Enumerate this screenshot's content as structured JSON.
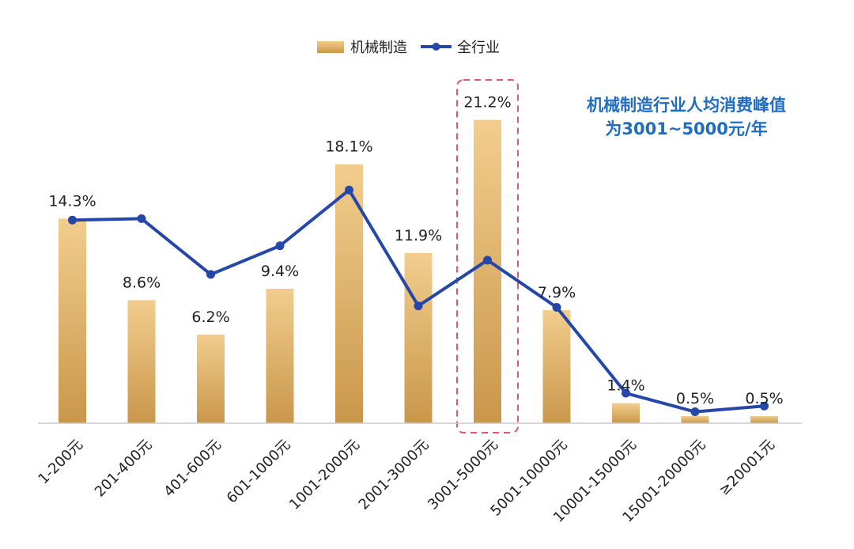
{
  "chart_data": {
    "type": "bar",
    "categories": [
      "1-200元",
      "201-400元",
      "401-600元",
      "601-1000元",
      "1001-2000元",
      "2001-3000元",
      "3001-5000元",
      "5001-10000元",
      "10001-15000元",
      "15001-20000元",
      "≥20001元"
    ],
    "series": [
      {
        "name": "机械制造",
        "kind": "bar",
        "values": [
          14.3,
          8.6,
          6.2,
          9.4,
          18.1,
          11.9,
          21.2,
          7.9,
          1.4,
          0.5,
          0.5
        ],
        "labels": [
          "14.3%",
          "8.6%",
          "6.2%",
          "9.4%",
          "18.1%",
          "11.9%",
          "21.2%",
          "7.9%",
          "1.4%",
          "0.5%",
          "0.5%"
        ]
      },
      {
        "name": "全行业",
        "kind": "line",
        "values": [
          14.2,
          14.3,
          10.4,
          12.4,
          16.3,
          8.2,
          11.4,
          8.1,
          2.1,
          0.8,
          1.2
        ]
      }
    ],
    "ylim": [
      0,
      23.5
    ],
    "grid": false,
    "legend_position": "top-center",
    "highlight_category": "3001-5000元",
    "annotation": {
      "line1": "机械制造行业人均消费峰值",
      "line2": "为3001~5000元/年"
    },
    "colors": {
      "bar_light": "#f2cd8d",
      "bar_dark": "#c9974b",
      "line": "#2447a8",
      "highlight_box": "#e0566f",
      "annotation": "#1f6cc0",
      "axis": "#cccccc"
    }
  }
}
